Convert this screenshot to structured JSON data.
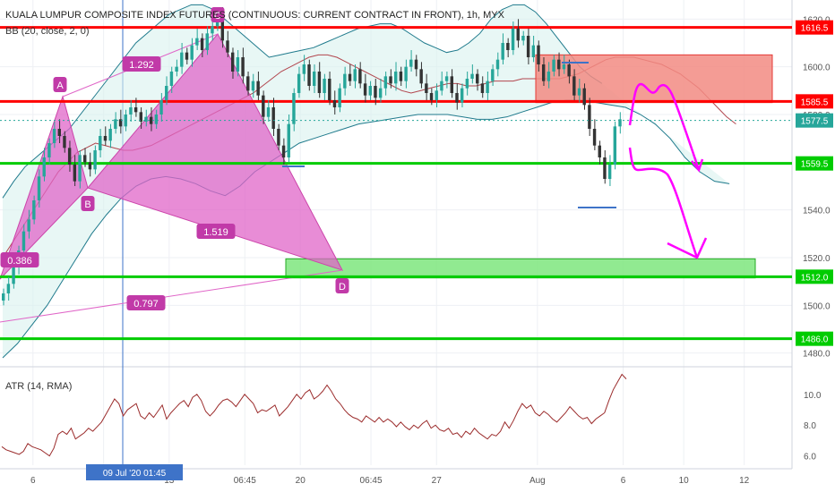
{
  "header": {
    "title": "KUALA LUMPUR COMPOSITE INDEX FUTURES (CONTINUOUS: CURRENT CONTRACT IN FRONT), 1h, MYX",
    "indicator": "BB (20, close, 2, 0)"
  },
  "atr": {
    "label": "ATR (14, RMA)",
    "ticks": [
      "10.0",
      "8.0",
      "6.0"
    ],
    "tick_values": [
      10.0,
      8.0,
      6.0
    ],
    "range": [
      5.4,
      11.5
    ],
    "values": [
      6.6,
      6.4,
      6.3,
      6.2,
      6.1,
      6.3,
      6.8,
      6.6,
      6.5,
      6.4,
      6.2,
      6.0,
      6.5,
      7.4,
      7.6,
      7.4,
      7.8,
      7.1,
      7.3,
      7.5,
      7.8,
      7.6,
      7.9,
      8.2,
      8.7,
      9.2,
      9.7,
      9.4,
      8.6,
      9.0,
      9.2,
      9.4,
      8.6,
      8.4,
      8.8,
      8.5,
      8.9,
      9.3,
      8.4,
      8.8,
      9.1,
      9.4,
      9.6,
      9.2,
      9.8,
      10.0,
      9.6,
      8.9,
      8.6,
      8.9,
      9.3,
      9.6,
      9.7,
      9.5,
      9.2,
      9.6,
      10.0,
      9.7,
      9.4,
      8.8,
      9.0,
      8.9,
      9.1,
      9.3,
      8.6,
      8.9,
      9.2,
      9.6,
      10.0,
      9.7,
      10.1,
      10.3,
      9.7,
      9.9,
      10.2,
      10.6,
      10.2,
      9.7,
      9.4,
      9.0,
      8.7,
      8.5,
      8.4,
      8.2,
      8.6,
      8.4,
      8.2,
      8.5,
      8.2,
      8.4,
      8.2,
      7.9,
      8.2,
      7.9,
      7.7,
      8.0,
      7.8,
      8.1,
      8.3,
      7.8,
      8.0,
      7.7,
      7.6,
      7.8,
      7.4,
      7.5,
      7.2,
      7.6,
      7.4,
      7.8,
      7.5,
      7.3,
      7.1,
      7.4,
      7.3,
      7.6,
      8.2,
      7.8,
      8.3,
      8.9,
      9.4,
      9.1,
      9.3,
      8.8,
      8.6,
      8.9,
      8.7,
      8.4,
      8.2,
      8.5,
      8.8,
      9.2,
      8.9,
      8.6,
      8.4,
      8.5,
      8.1,
      8.4,
      8.6,
      8.8,
      9.6,
      10.3,
      10.8,
      11.3,
      11.0
    ]
  },
  "chart_data": {
    "type": "candlestick",
    "title": "KUALA LUMPUR COMPOSITE INDEX FUTURES (CONTINUOUS: CURRENT CONTRACT IN FRONT), 1h, MYX",
    "y_ticks": [
      "1620.0",
      "1600.0",
      "1580.0",
      "1560.0",
      "1540.0",
      "1520.0",
      "1500.0",
      "1480.0"
    ],
    "y_tick_values": [
      1620,
      1600,
      1580,
      1560,
      1540,
      1520,
      1500,
      1480
    ],
    "x_ticks": [
      "6",
      "09 Jul '20  01:45",
      "13",
      "06:45",
      "20",
      "06:45",
      "27",
      "Aug",
      "6",
      "10",
      "12"
    ],
    "x_tick_bar": [
      6,
      20,
      33,
      48,
      59,
      73,
      86,
      106,
      123,
      135,
      147
    ],
    "price_range": [
      1475,
      1628
    ],
    "bars": 147,
    "last_price": "1577.5",
    "closes": [
      1505,
      1509,
      1516,
      1523,
      1531,
      1536,
      1544,
      1554,
      1562,
      1568,
      1574,
      1571,
      1566,
      1559,
      1552,
      1563,
      1560,
      1557,
      1565,
      1571,
      1569,
      1574,
      1578,
      1575,
      1580,
      1583,
      1581,
      1577,
      1579,
      1576,
      1580,
      1586,
      1592,
      1598,
      1600,
      1606,
      1603,
      1609,
      1612,
      1607,
      1614,
      1617,
      1622,
      1611,
      1606,
      1598,
      1604,
      1596,
      1590,
      1594,
      1588,
      1579,
      1583,
      1574,
      1567,
      1562,
      1576,
      1589,
      1597,
      1601,
      1592,
      1598,
      1589,
      1595,
      1586,
      1583,
      1591,
      1597,
      1594,
      1599,
      1593,
      1588,
      1592,
      1587,
      1591,
      1596,
      1593,
      1598,
      1594,
      1600,
      1603,
      1599,
      1593,
      1589,
      1586,
      1590,
      1594,
      1596,
      1589,
      1585,
      1591,
      1595,
      1597,
      1593,
      1589,
      1594,
      1599,
      1603,
      1610,
      1607,
      1616,
      1611,
      1613,
      1604,
      1609,
      1601,
      1594,
      1598,
      1603,
      1599,
      1601,
      1596,
      1588,
      1591,
      1584,
      1574,
      1567,
      1562,
      1553,
      1559,
      1575,
      1578
    ],
    "bb_mid": [
      1520,
      1526,
      1532,
      1538,
      1544,
      1550,
      1556,
      1560,
      1564,
      1566,
      1568,
      1567,
      1566,
      1565,
      1565,
      1566,
      1567,
      1569,
      1571,
      1573,
      1575,
      1577,
      1579,
      1581,
      1583,
      1585,
      1587,
      1589,
      1592,
      1595,
      1598,
      1600,
      1602,
      1604,
      1605,
      1605,
      1604,
      1602,
      1600,
      1598,
      1596,
      1594,
      1592,
      1590,
      1589,
      1590,
      1591,
      1592,
      1593,
      1593,
      1592,
      1592,
      1593,
      1594,
      1594,
      1594,
      1595,
      1595,
      1595,
      1595,
      1595,
      1596,
      1597,
      1599,
      1601,
      1603,
      1604,
      1604,
      1604,
      1603,
      1602,
      1601,
      1599,
      1597,
      1594,
      1591,
      1587,
      1583,
      1579,
      1576
    ],
    "bb_upper": [
      1545,
      1552,
      1558,
      1562,
      1566,
      1570,
      1574,
      1580,
      1586,
      1592,
      1598,
      1604,
      1610,
      1614,
      1618,
      1622,
      1624,
      1626,
      1626,
      1624,
      1620,
      1616,
      1612,
      1608,
      1604,
      1605,
      1606,
      1607,
      1608,
      1610,
      1612,
      1614,
      1616,
      1617,
      1618,
      1618,
      1616,
      1613,
      1610,
      1608,
      1606,
      1607,
      1610,
      1614,
      1620,
      1624,
      1626,
      1626,
      1623,
      1618,
      1612,
      1606,
      1600,
      1596,
      1593
    ],
    "bb_lower": [
      1478,
      1484,
      1492,
      1500,
      1510,
      1520,
      1530,
      1538,
      1545,
      1550,
      1553,
      1554,
      1553,
      1551,
      1548,
      1546,
      1550,
      1556,
      1560,
      1564,
      1568,
      1570,
      1572,
      1574,
      1576,
      1577,
      1578,
      1579,
      1580,
      1580,
      1580,
      1579,
      1578,
      1578,
      1579,
      1581,
      1583,
      1585,
      1586,
      1586,
      1585,
      1584,
      1583,
      1580,
      1576,
      1570,
      1562,
      1556,
      1552,
      1551
    ],
    "levels": [
      {
        "value": 1616.5,
        "label": "1616.5",
        "color": "#ff0000"
      },
      {
        "value": 1585.5,
        "label": "1585.5",
        "color": "#ff0000"
      },
      {
        "value": 1559.5,
        "label": "1559.5",
        "color": "#00cc00"
      },
      {
        "value": 1512.0,
        "label": "1512.0",
        "color": "#00cc00"
      },
      {
        "value": 1486.0,
        "label": "1486.0",
        "color": "#00cc00"
      }
    ],
    "harmonic_points": [
      "A",
      "B",
      "C",
      "D"
    ],
    "ratios": [
      "1.292",
      "0.386",
      "1.519",
      "0.797"
    ],
    "colors": {
      "up": "#26a69a",
      "down": "#333333",
      "pattern": "#e066c8",
      "bb": "#1f7a8c",
      "mid": "#b2464e"
    }
  }
}
